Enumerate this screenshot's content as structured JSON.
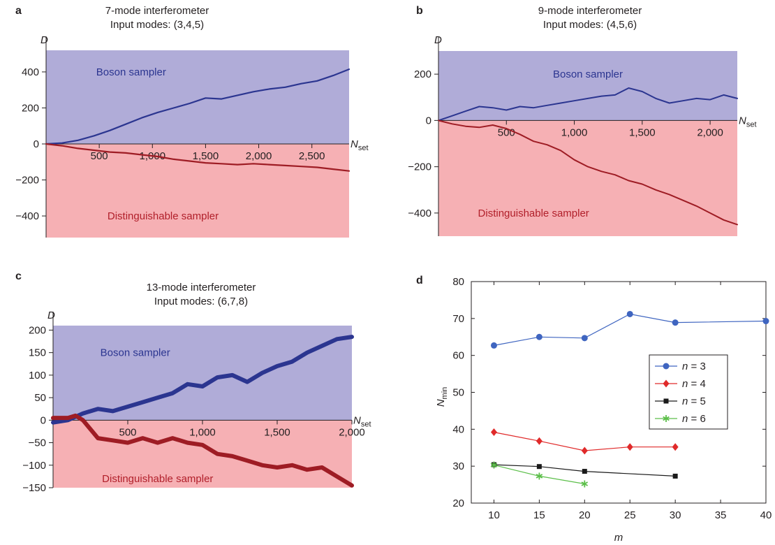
{
  "chart_data": [
    {
      "panel": "a",
      "type": "line",
      "title": "7-mode interferometer",
      "subtitle": "Input modes: (3,4,5)",
      "ylabel": "D",
      "xlabel": {
        "main": "N",
        "sub": "set"
      },
      "xlim": [
        0,
        2850
      ],
      "ylim": [
        -520,
        520
      ],
      "xticks": [
        500,
        1000,
        1500,
        2000,
        2500
      ],
      "xtick_labels": [
        "500",
        "1,000",
        "1,500",
        "2,000",
        "2,500"
      ],
      "yticks": [
        400,
        200,
        0,
        -200,
        -400
      ],
      "ytick_labels": [
        "400",
        "200",
        "0",
        "−200",
        "−400"
      ],
      "regions": [
        {
          "label": "Boson sampler",
          "color": "#b0acd8",
          "text_color": "#2b3590",
          "label_at": [
            800,
            400
          ]
        },
        {
          "label": "Distinguishable sampler",
          "color": "#f6b0b4",
          "text_color": "#b11f2a",
          "label_at": [
            1100,
            -400
          ]
        }
      ],
      "series": [
        {
          "color": "#2b3590",
          "width": 2.2,
          "x": [
            0,
            150,
            300,
            450,
            600,
            750,
            900,
            1050,
            1200,
            1350,
            1500,
            1650,
            1800,
            1950,
            2100,
            2250,
            2400,
            2550,
            2700,
            2850
          ],
          "y": [
            0,
            5,
            20,
            45,
            75,
            110,
            145,
            175,
            200,
            225,
            255,
            250,
            270,
            290,
            305,
            315,
            335,
            350,
            380,
            415
          ]
        },
        {
          "color": "#9e1c24",
          "width": 2.2,
          "x": [
            0,
            150,
            300,
            450,
            600,
            750,
            900,
            1050,
            1200,
            1350,
            1500,
            1650,
            1800,
            1950,
            2100,
            2250,
            2400,
            2550,
            2700,
            2850
          ],
          "y": [
            0,
            -10,
            -25,
            -35,
            -45,
            -50,
            -60,
            -70,
            -85,
            -95,
            -105,
            -110,
            -115,
            -110,
            -115,
            -120,
            -125,
            -130,
            -140,
            -150
          ]
        }
      ]
    },
    {
      "panel": "b",
      "type": "line",
      "title": "9-mode interferometer",
      "subtitle": "Input modes: (4,5,6)",
      "ylabel": "D",
      "xlabel": {
        "main": "N",
        "sub": "set"
      },
      "xlim": [
        0,
        2200
      ],
      "ylim": [
        -500,
        300
      ],
      "xticks": [
        500,
        1000,
        1500,
        2000
      ],
      "xtick_labels": [
        "500",
        "1,000",
        "1,500",
        "2,000"
      ],
      "yticks": [
        200,
        0,
        -200,
        -400
      ],
      "ytick_labels": [
        "200",
        "0",
        "−200",
        "−400"
      ],
      "regions": [
        {
          "label": "Boson sampler",
          "color": "#b0acd8",
          "text_color": "#2b3590",
          "label_at": [
            1100,
            200
          ]
        },
        {
          "label": "Distinguishable sampler",
          "color": "#f6b0b4",
          "text_color": "#b11f2a",
          "label_at": [
            700,
            -400
          ]
        }
      ],
      "series": [
        {
          "color": "#2b3590",
          "width": 2,
          "x": [
            0,
            100,
            200,
            300,
            400,
            500,
            600,
            700,
            800,
            900,
            1000,
            1100,
            1200,
            1300,
            1400,
            1500,
            1600,
            1700,
            1800,
            1900,
            2000,
            2100,
            2200
          ],
          "y": [
            0,
            20,
            40,
            60,
            55,
            45,
            60,
            55,
            65,
            75,
            85,
            95,
            105,
            110,
            140,
            125,
            95,
            75,
            85,
            95,
            90,
            110,
            95
          ]
        },
        {
          "color": "#9e1c24",
          "width": 2,
          "x": [
            0,
            100,
            200,
            300,
            400,
            500,
            600,
            700,
            800,
            900,
            1000,
            1100,
            1200,
            1300,
            1400,
            1500,
            1600,
            1700,
            1800,
            1900,
            2000,
            2100,
            2200
          ],
          "y": [
            0,
            -15,
            -25,
            -30,
            -20,
            -35,
            -60,
            -90,
            -105,
            -130,
            -170,
            -200,
            -220,
            -235,
            -260,
            -275,
            -300,
            -320,
            -345,
            -370,
            -400,
            -430,
            -450
          ]
        }
      ]
    },
    {
      "panel": "c",
      "type": "line",
      "title": "13-mode interferometer",
      "subtitle": "Input modes: (6,7,8)",
      "ylabel": "D",
      "xlabel": {
        "main": "N",
        "sub": "set"
      },
      "xlim": [
        0,
        2000
      ],
      "ylim": [
        -150,
        210
      ],
      "xticks": [
        500,
        1000,
        1500,
        2000
      ],
      "xtick_labels": [
        "500",
        "1,000",
        "1,500",
        "2,000"
      ],
      "yticks": [
        200,
        150,
        100,
        50,
        0,
        -50,
        -100,
        -150
      ],
      "ytick_labels": [
        "200",
        "150",
        "100",
        "50",
        "0",
        "−50",
        "−100",
        "−150"
      ],
      "regions": [
        {
          "label": "Boson sampler",
          "color": "#b0acd8",
          "text_color": "#2b3590",
          "label_at": [
            550,
            150
          ]
        },
        {
          "label": "Distinguishable sampler",
          "color": "#f6b0b4",
          "text_color": "#b11f2a",
          "label_at": [
            700,
            -130
          ]
        }
      ],
      "series": [
        {
          "color": "#2b3590",
          "width": 6,
          "x": [
            0,
            100,
            200,
            300,
            400,
            500,
            600,
            700,
            800,
            900,
            1000,
            1100,
            1200,
            1300,
            1400,
            1500,
            1600,
            1700,
            1800,
            1900,
            2000
          ],
          "y": [
            -5,
            0,
            15,
            25,
            20,
            30,
            40,
            50,
            60,
            80,
            75,
            95,
            100,
            85,
            105,
            120,
            130,
            150,
            165,
            180,
            185
          ]
        },
        {
          "color": "#9e1c24",
          "width": 6,
          "x": [
            0,
            100,
            150,
            200,
            300,
            400,
            500,
            600,
            700,
            800,
            900,
            1000,
            1100,
            1200,
            1300,
            1400,
            1500,
            1600,
            1700,
            1800,
            1900,
            2000
          ],
          "y": [
            5,
            5,
            10,
            0,
            -40,
            -45,
            -50,
            -40,
            -50,
            -40,
            -50,
            -55,
            -75,
            -80,
            -90,
            -100,
            -105,
            -100,
            -110,
            -105,
            -125,
            -145
          ]
        }
      ]
    },
    {
      "panel": "d",
      "type": "line",
      "xlabel": "m",
      "ylabel": {
        "main": "N",
        "sub": "min"
      },
      "xlim": [
        7.5,
        40
      ],
      "ylim": [
        20,
        80
      ],
      "xticks": [
        10,
        15,
        20,
        25,
        30,
        35,
        40
      ],
      "yticks": [
        20,
        30,
        40,
        50,
        60,
        70,
        80
      ],
      "legend": "center-right",
      "series": [
        {
          "name": "n = 3",
          "color": "#3f65c0",
          "marker": "circle",
          "x": [
            10,
            15,
            20,
            25,
            30,
            40
          ],
          "y": [
            62.7,
            65.0,
            64.7,
            71.2,
            68.9,
            69.3
          ]
        },
        {
          "name": "n = 4",
          "color": "#e02a2a",
          "marker": "diamond",
          "x": [
            10,
            15,
            20,
            25,
            30
          ],
          "y": [
            39.2,
            36.8,
            34.2,
            35.2,
            35.2
          ]
        },
        {
          "name": "n = 5",
          "color": "#1a1a1a",
          "marker": "square",
          "x": [
            10,
            15,
            20,
            30
          ],
          "y": [
            30.4,
            29.9,
            28.6,
            27.3
          ]
        },
        {
          "name": "n = 6",
          "color": "#5cbf4a",
          "marker": "star",
          "x": [
            10,
            15,
            20
          ],
          "y": [
            30.3,
            27.3,
            25.2
          ]
        }
      ]
    }
  ]
}
